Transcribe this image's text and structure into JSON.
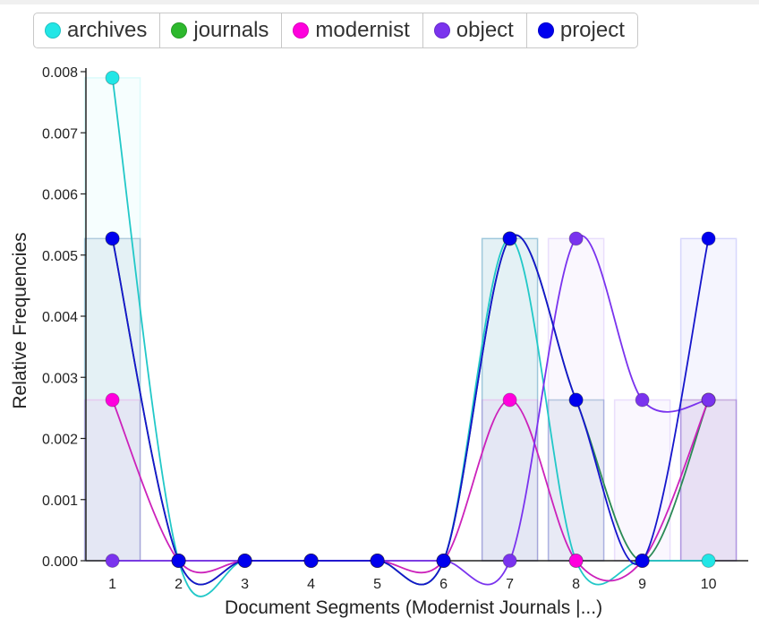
{
  "legend": {
    "items": [
      {
        "label": "archives",
        "color": "#22e6e6"
      },
      {
        "label": "journals",
        "color": "#2db82d"
      },
      {
        "label": "modernist",
        "color": "#ff00dd"
      },
      {
        "label": "object",
        "color": "#7a33ee"
      },
      {
        "label": "project",
        "color": "#0000ee"
      }
    ]
  },
  "chart_data": {
    "type": "line",
    "x": [
      1,
      2,
      3,
      4,
      5,
      6,
      7,
      8,
      9,
      10
    ],
    "xlabel": "Document Segments (Modernist Journals |...)",
    "ylabel": "Relative Frequencies",
    "xlim": [
      0.6,
      10.6
    ],
    "ylim": [
      0,
      0.008
    ],
    "y_ticks": [
      "0.000",
      "0.001",
      "0.002",
      "0.003",
      "0.004",
      "0.005",
      "0.006",
      "0.007",
      "0.008"
    ],
    "x_ticks": [
      "1",
      "2",
      "3",
      "4",
      "5",
      "6",
      "7",
      "8",
      "9",
      "10"
    ],
    "curve": "smooth",
    "background_bars": true,
    "series": [
      {
        "name": "archives",
        "color": "#22e6e6",
        "line_color": "#22c8c8",
        "values": [
          0.0079,
          0,
          0,
          0,
          0,
          0,
          0.00527,
          0,
          0,
          0
        ]
      },
      {
        "name": "journals",
        "color": "#2db82d",
        "line_color": "#2a8a55",
        "values": [
          0.00527,
          0,
          0,
          0,
          0,
          0,
          0.00527,
          0.00263,
          0,
          0.00263
        ]
      },
      {
        "name": "modernist",
        "color": "#ff00dd",
        "line_color": "#cc22bb",
        "values": [
          0.00263,
          0,
          0,
          0,
          0,
          0,
          0.00263,
          0,
          0,
          0.00263
        ]
      },
      {
        "name": "object",
        "color": "#7a33ee",
        "line_color": "#7a33ee",
        "values": [
          0,
          0,
          0,
          0,
          0,
          0,
          0,
          0.00527,
          0.00263,
          0.00263
        ]
      },
      {
        "name": "project",
        "color": "#0000ee",
        "line_color": "#1515cc",
        "values": [
          0.00527,
          0,
          0,
          0,
          0,
          0,
          0.00527,
          0.00263,
          0,
          0.00527
        ]
      }
    ]
  }
}
